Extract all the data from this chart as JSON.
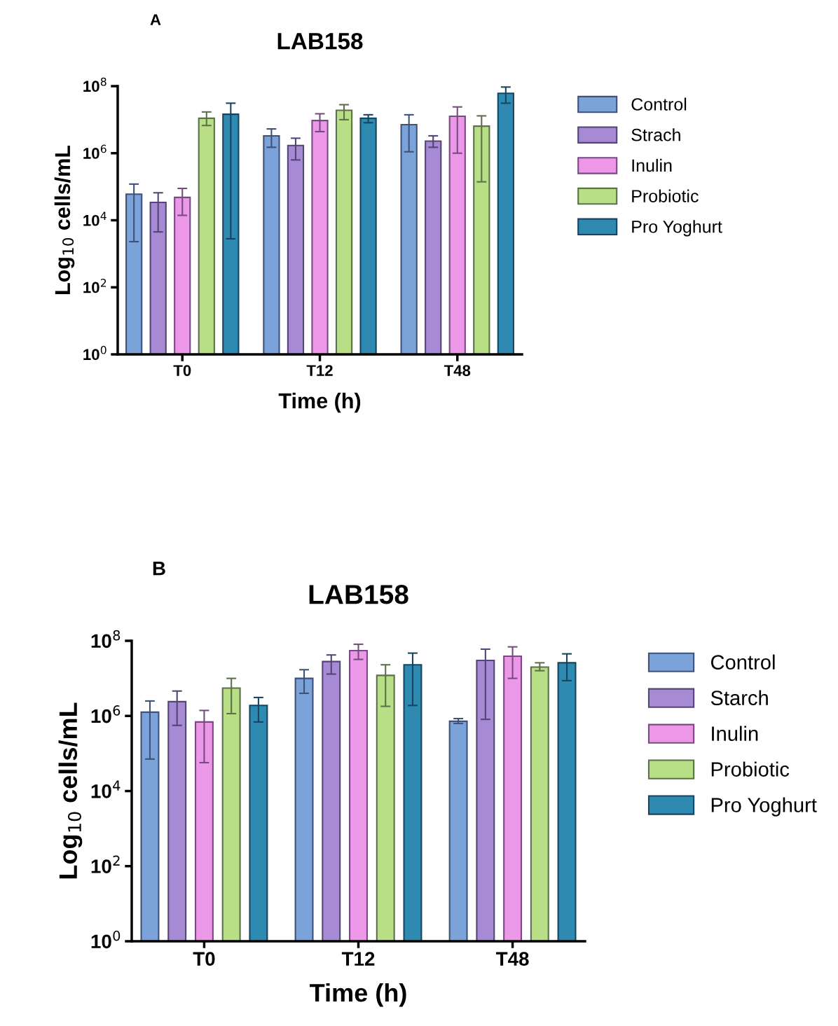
{
  "chart_data": [
    {
      "type": "bar",
      "title": "LAB158",
      "annotations": [
        "A"
      ],
      "xlabel": "Time (h)",
      "ylabel": "Log$_{10}$ cells/mL",
      "categories": [
        "T0",
        "T12",
        "T48"
      ],
      "log": true,
      "ylim": [
        1,
        100000000
      ],
      "yticks": [
        {
          "value": 1,
          "label": "10$^{0}$"
        },
        {
          "value": 100,
          "label": "10$^{2}$"
        },
        {
          "value": 10000,
          "label": "10$^{4}$"
        },
        {
          "value": 1000000,
          "label": "10$^{6}$"
        },
        {
          "value": 100000000,
          "label": "10$^{8}$"
        }
      ],
      "legend": "right",
      "grid": false,
      "series": [
        {
          "name": "Control",
          "color": "#7ba3d9",
          "values": [
            60000,
            3300000,
            7100000
          ],
          "errors": [
            [
              2300,
              120000
            ],
            [
              1500000,
              5300000
            ],
            [
              1100000,
              14000000
            ]
          ]
        },
        {
          "name": "Strach",
          "color": "#a68ad4",
          "values": [
            34000,
            1700000,
            2300000
          ],
          "errors": [
            [
              4500,
              66000
            ],
            [
              630000,
              2800000
            ],
            [
              1500000,
              3300000
            ]
          ]
        },
        {
          "name": "Inulin",
          "color": "#ec97e8",
          "values": [
            48000,
            9400000,
            12600000
          ],
          "errors": [
            [
              14000,
              89000
            ],
            [
              4400000,
              15000000
            ],
            [
              1000000,
              24000000
            ]
          ]
        },
        {
          "name": "Probiotic",
          "color": "#b9df86",
          "values": [
            11000000,
            19000000,
            6400000
          ],
          "errors": [
            [
              6700000,
              17000000
            ],
            [
              10000000,
              28000000
            ],
            [
              140000,
              13000000
            ]
          ]
        },
        {
          "name": "Pro Yoghurt",
          "color": "#2e8ab0",
          "values": [
            14500000,
            11000000,
            61000000
          ],
          "errors": [
            [
              2800,
              31000000
            ],
            [
              8100000,
              14000000
            ],
            [
              31000000,
              94000000
            ]
          ]
        }
      ]
    },
    {
      "type": "bar",
      "title": "LAB158",
      "annotations": [
        "B"
      ],
      "xlabel": "Time (h)",
      "ylabel": "Log$_{10}$ cells/mL",
      "categories": [
        "T0",
        "T12",
        "T48"
      ],
      "log": true,
      "ylim": [
        1,
        100000000
      ],
      "yticks": [
        {
          "value": 1,
          "label": "10$^{0}$"
        },
        {
          "value": 100,
          "label": "10$^{2}$"
        },
        {
          "value": 10000,
          "label": "10$^{4}$"
        },
        {
          "value": 1000000,
          "label": "10$^{6}$"
        },
        {
          "value": 100000000,
          "label": "10$^{8}$"
        }
      ],
      "legend": "right",
      "grid": false,
      "series": [
        {
          "name": "Control",
          "color": "#7ba3d9",
          "values": [
            1260000,
            10000000,
            720000
          ],
          "errors": [
            [
              71000,
              2500000
            ],
            [
              4000000,
              17000000
            ],
            [
              630000,
              850000
            ]
          ]
        },
        {
          "name": "Starch",
          "color": "#a68ad4",
          "values": [
            2400000,
            28000000,
            30000000
          ],
          "errors": [
            [
              560000,
              4600000
            ],
            [
              13000000,
              42000000
            ],
            [
              810000,
              60000000
            ]
          ]
        },
        {
          "name": "Inulin",
          "color": "#ec97e8",
          "values": [
            690000,
            55000000,
            39000000
          ],
          "errors": [
            [
              57000,
              1400000
            ],
            [
              32000000,
              81000000
            ],
            [
              10000000,
              69000000
            ]
          ]
        },
        {
          "name": "Probiotic",
          "color": "#b9df86",
          "values": [
            5500000,
            12000000,
            20000000
          ],
          "errors": [
            [
              1150000,
              10000000
            ],
            [
              1800000,
              23000000
            ],
            [
              16000000,
              26000000
            ]
          ]
        },
        {
          "name": "Pro Yoghurt",
          "color": "#2e8ab0",
          "values": [
            1900000,
            23000000,
            26000000
          ],
          "errors": [
            [
              690000,
              3100000
            ],
            [
              1900000,
              47000000
            ],
            [
              8700000,
              45000000
            ]
          ]
        }
      ]
    }
  ]
}
